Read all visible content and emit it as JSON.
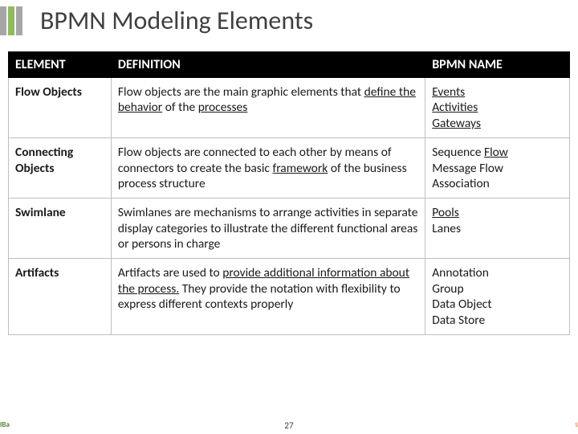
{
  "title": "BPMN Modeling Elements",
  "pageNumber": "27",
  "leftMark": "IBa",
  "rightMark": "s",
  "table": {
    "headers": {
      "c1": "ELEMENT",
      "c2": "DEFINITION",
      "c3": "BPMN NAME"
    },
    "rows": [
      {
        "element": "Flow Objects",
        "def": {
          "pre": "Flow objects are the main graphic elements that ",
          "u1": "define the behavior",
          "mid": " of the ",
          "u2": "processes",
          "post": ""
        },
        "names": [
          {
            "text": "Events",
            "u": true
          },
          {
            "text": "Activities",
            "u": true
          },
          {
            "text": "Gateways",
            "u": true
          }
        ]
      },
      {
        "element": "Connecting Objects",
        "def": {
          "pre": "Flow objects are connected to each other by means of connectors to create the basic ",
          "u1": "framework",
          "mid": " of the business process structure",
          "u2": "",
          "post": ""
        },
        "names": [
          {
            "text": "Sequence ",
            "u": false,
            "tail": "Flow",
            "tu": true
          },
          {
            "text": "Message Flow",
            "u": false
          },
          {
            "text": "Association",
            "u": false
          }
        ]
      },
      {
        "element": "Swimlane",
        "def": {
          "pre": "Swimlanes are mechanisms to arrange activities in separate display categories to illustrate the different functional areas or persons in charge",
          "u1": "",
          "mid": "",
          "u2": "",
          "post": ""
        },
        "names": [
          {
            "text": "Pools",
            "u": true
          },
          {
            "text": "Lanes",
            "u": false
          }
        ]
      },
      {
        "element": "Artifacts",
        "def": {
          "pre": "Artifacts are used to ",
          "u1": "provide additional information about the process.",
          "mid": " They provide the notation with flexibility to express different contexts properly",
          "u2": "",
          "post": ""
        },
        "names": [
          {
            "text": "Annotation",
            "u": false
          },
          {
            "text": "Group",
            "u": false
          },
          {
            "text": "Data Object",
            "u": false
          },
          {
            "text": "Data Store",
            "u": false
          }
        ]
      }
    ]
  }
}
